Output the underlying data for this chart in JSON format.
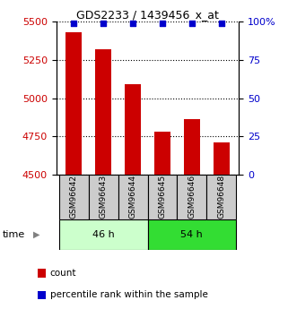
{
  "title": "GDS2233 / 1439456_x_at",
  "categories": [
    "GSM96642",
    "GSM96643",
    "GSM96644",
    "GSM96645",
    "GSM96646",
    "GSM96648"
  ],
  "counts": [
    5430,
    5320,
    5090,
    4780,
    4860,
    4710
  ],
  "percentiles": [
    99,
    99,
    99,
    99,
    99,
    99
  ],
  "ylim_left": [
    4500,
    5500
  ],
  "ylim_right": [
    0,
    100
  ],
  "yticks_left": [
    4500,
    4750,
    5000,
    5250,
    5500
  ],
  "yticks_right": [
    0,
    25,
    50,
    75,
    100
  ],
  "bar_color": "#cc0000",
  "percentile_color": "#0000cc",
  "group1_label": "46 h",
  "group2_label": "54 h",
  "group1_indices": [
    0,
    1,
    2
  ],
  "group2_indices": [
    3,
    4,
    5
  ],
  "group1_bg": "#ccffcc",
  "group2_bg": "#33dd33",
  "sample_bg": "#cccccc",
  "legend_count_label": "count",
  "legend_percentile_label": "percentile rank within the sample",
  "time_label": "time",
  "bar_width": 0.55,
  "title_fontsize": 9,
  "tick_fontsize": 8,
  "label_fontsize": 7,
  "legend_fontsize": 7.5,
  "group_fontsize": 8,
  "sample_fontsize": 6.5
}
